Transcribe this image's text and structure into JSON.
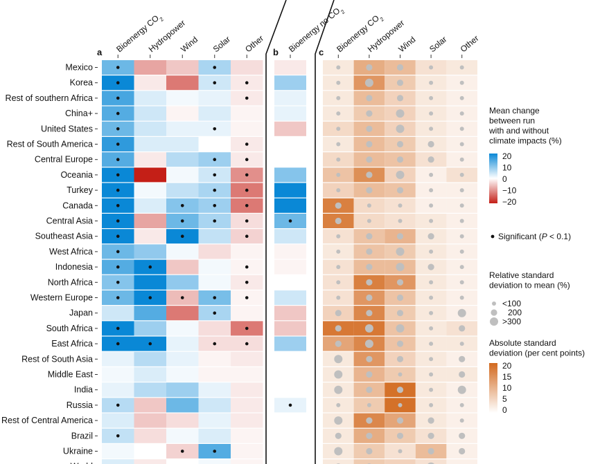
{
  "chart_data": {
    "type": "heatmap",
    "rows": [
      "Mexico",
      "Korea",
      "Rest of southern Africa",
      "China+",
      "United States",
      "Rest of South America",
      "Central Europe",
      "Oceania",
      "Turkey",
      "Canada",
      "Central Asia",
      "Southeast Asia",
      "West Africa",
      "Indonesia",
      "North Africa",
      "Western Europe",
      "Japan",
      "South Africa",
      "East Africa",
      "Rest of South Asia",
      "Middle East",
      "India",
      "Russia",
      "Rest of Central America",
      "Brazil",
      "Ukraine",
      "World"
    ],
    "panels": [
      {
        "label": "a",
        "columns": [
          "Bioenergy CO₂",
          "Hydropower",
          "Wind",
          "Solar",
          "Other"
        ],
        "values": [
          [
            12,
            -8,
            -5,
            7,
            -3
          ],
          [
            22,
            -2,
            -12,
            4,
            -2
          ],
          [
            15,
            3,
            1,
            2,
            -2
          ],
          [
            14,
            4,
            -1,
            3,
            -1
          ],
          [
            12,
            4,
            2,
            2,
            -1
          ],
          [
            17,
            3,
            3,
            0,
            -2
          ],
          [
            14,
            -2,
            6,
            8,
            -2
          ],
          [
            22,
            -24,
            1,
            4,
            -10
          ],
          [
            22,
            1,
            5,
            7,
            -12
          ],
          [
            22,
            3,
            10,
            8,
            -12
          ],
          [
            22,
            -8,
            12,
            7,
            -3
          ],
          [
            22,
            -2,
            22,
            5,
            -4
          ],
          [
            12,
            9,
            1,
            -3,
            -1
          ],
          [
            14,
            20,
            -5,
            1,
            -1
          ],
          [
            10,
            22,
            9,
            1,
            -2
          ],
          [
            12,
            20,
            -6,
            11,
            -1
          ],
          [
            4,
            14,
            -12,
            7,
            -1
          ],
          [
            22,
            8,
            1,
            -3,
            -12
          ],
          [
            22,
            22,
            2,
            -3,
            -3
          ],
          [
            2,
            6,
            2,
            -1,
            -2
          ],
          [
            1,
            3,
            1,
            -1,
            -1
          ],
          [
            2,
            6,
            8,
            2,
            -2
          ],
          [
            6,
            -5,
            12,
            4,
            -2
          ],
          [
            3,
            -5,
            -3,
            2,
            -2
          ],
          [
            5,
            -3,
            1,
            3,
            -1
          ],
          [
            1,
            0,
            -4,
            14,
            -1
          ],
          [
            3,
            -2,
            0,
            1,
            -1
          ]
        ],
        "significant": [
          [
            1,
            0,
            0,
            1,
            0
          ],
          [
            1,
            0,
            0,
            1,
            1
          ],
          [
            1,
            0,
            0,
            0,
            1
          ],
          [
            1,
            0,
            0,
            0,
            0
          ],
          [
            1,
            0,
            0,
            1,
            0
          ],
          [
            1,
            0,
            0,
            0,
            1
          ],
          [
            1,
            0,
            0,
            1,
            1
          ],
          [
            1,
            0,
            0,
            1,
            1
          ],
          [
            1,
            0,
            0,
            1,
            1
          ],
          [
            1,
            0,
            1,
            1,
            1
          ],
          [
            1,
            0,
            1,
            1,
            1
          ],
          [
            1,
            0,
            1,
            0,
            1
          ],
          [
            1,
            0,
            0,
            0,
            0
          ],
          [
            1,
            1,
            0,
            0,
            1
          ],
          [
            1,
            0,
            0,
            0,
            1
          ],
          [
            1,
            1,
            1,
            1,
            1
          ],
          [
            0,
            0,
            0,
            1,
            0
          ],
          [
            1,
            0,
            0,
            0,
            1
          ],
          [
            1,
            1,
            0,
            1,
            1
          ],
          [
            0,
            0,
            0,
            0,
            0
          ],
          [
            0,
            0,
            0,
            0,
            0
          ],
          [
            0,
            0,
            0,
            0,
            0
          ],
          [
            1,
            0,
            0,
            0,
            0
          ],
          [
            0,
            0,
            0,
            0,
            0
          ],
          [
            1,
            0,
            0,
            0,
            0
          ],
          [
            0,
            0,
            1,
            1,
            0
          ],
          [
            1,
            0,
            0,
            0,
            1
          ]
        ]
      },
      {
        "label": "b",
        "columns": [
          "Bioenergy no CO₂"
        ],
        "values": [
          [
            -2
          ],
          [
            8
          ],
          [
            2
          ],
          [
            2
          ],
          [
            -5
          ],
          [
            0
          ],
          [
            0
          ],
          [
            10
          ],
          [
            22
          ],
          [
            22
          ],
          [
            12
          ],
          [
            4
          ],
          [
            -1
          ],
          [
            -1
          ],
          [
            0
          ],
          [
            4
          ],
          [
            -5
          ],
          [
            -5
          ],
          [
            8
          ],
          [
            0
          ],
          [
            0
          ],
          [
            0
          ],
          [
            2
          ],
          [
            0
          ],
          [
            0
          ],
          [
            0
          ],
          [
            0
          ]
        ],
        "significant": [
          [
            0
          ],
          [
            0
          ],
          [
            0
          ],
          [
            0
          ],
          [
            0
          ],
          [
            0
          ],
          [
            0
          ],
          [
            0
          ],
          [
            0
          ],
          [
            0
          ],
          [
            1
          ],
          [
            0
          ],
          [
            0
          ],
          [
            0
          ],
          [
            0
          ],
          [
            0
          ],
          [
            0
          ],
          [
            0
          ],
          [
            0
          ],
          [
            0
          ],
          [
            0
          ],
          [
            0
          ],
          [
            1
          ],
          [
            0
          ],
          [
            0
          ],
          [
            0
          ],
          [
            0
          ]
        ]
      },
      {
        "label": "c",
        "columns": [
          "Bioenergy CO₂",
          "Hydropower",
          "Wind",
          "Solar",
          "Other"
        ],
        "abs_sd": [
          [
            3,
            11,
            9,
            4,
            3
          ],
          [
            3,
            14,
            7,
            3,
            2
          ],
          [
            3,
            9,
            6,
            3,
            2
          ],
          [
            3,
            7,
            6,
            3,
            2
          ],
          [
            5,
            9,
            6,
            3,
            2
          ],
          [
            3,
            9,
            7,
            3,
            2
          ],
          [
            5,
            9,
            8,
            4,
            2
          ],
          [
            8,
            15,
            6,
            2,
            4
          ],
          [
            6,
            9,
            8,
            2,
            2
          ],
          [
            17,
            5,
            4,
            2,
            2
          ],
          [
            17,
            5,
            4,
            3,
            2
          ],
          [
            4,
            8,
            10,
            3,
            2
          ],
          [
            3,
            8,
            7,
            3,
            2
          ],
          [
            4,
            9,
            9,
            3,
            2
          ],
          [
            4,
            17,
            14,
            3,
            2
          ],
          [
            4,
            14,
            8,
            3,
            2
          ],
          [
            6,
            16,
            7,
            3,
            2
          ],
          [
            18,
            18,
            8,
            3,
            4
          ],
          [
            12,
            16,
            8,
            3,
            3
          ],
          [
            3,
            14,
            6,
            3,
            2
          ],
          [
            3,
            10,
            7,
            3,
            3
          ],
          [
            3,
            9,
            19,
            3,
            2
          ],
          [
            3,
            7,
            19,
            3,
            2
          ],
          [
            3,
            16,
            12,
            3,
            2
          ],
          [
            3,
            11,
            7,
            4,
            2
          ],
          [
            3,
            7,
            4,
            9,
            2
          ],
          [
            3,
            7,
            6,
            4,
            2
          ]
        ],
        "rel_sd": [
          [
            1,
            2,
            2,
            1,
            1
          ],
          [
            1,
            3,
            2,
            1,
            1
          ],
          [
            1,
            2,
            2,
            1,
            1
          ],
          [
            1,
            2,
            3,
            1,
            1
          ],
          [
            1,
            2,
            3,
            1,
            1
          ],
          [
            1,
            2,
            2,
            2,
            1
          ],
          [
            1,
            2,
            2,
            2,
            1
          ],
          [
            1,
            2,
            3,
            1,
            1
          ],
          [
            1,
            2,
            2,
            1,
            1
          ],
          [
            2,
            1,
            1,
            1,
            1
          ],
          [
            2,
            1,
            1,
            1,
            1
          ],
          [
            1,
            2,
            2,
            2,
            1
          ],
          [
            1,
            2,
            3,
            1,
            1
          ],
          [
            1,
            2,
            3,
            2,
            1
          ],
          [
            1,
            2,
            2,
            1,
            1
          ],
          [
            1,
            2,
            2,
            1,
            1
          ],
          [
            2,
            2,
            2,
            1,
            3
          ],
          [
            2,
            3,
            3,
            1,
            2
          ],
          [
            2,
            3,
            2,
            1,
            1
          ],
          [
            3,
            2,
            2,
            1,
            2
          ],
          [
            3,
            2,
            1,
            1,
            2
          ],
          [
            3,
            2,
            2,
            1,
            3
          ],
          [
            1,
            1,
            1,
            1,
            1
          ],
          [
            3,
            2,
            2,
            2,
            1
          ],
          [
            2,
            2,
            2,
            2,
            2
          ],
          [
            3,
            2,
            1,
            2,
            2
          ],
          [
            2,
            2,
            1,
            3,
            1
          ]
        ]
      }
    ],
    "legend_mean": {
      "title": [
        "Mean change",
        "between run",
        "with and without",
        "climate impacts (%)"
      ],
      "ticks": [
        "20",
        "10",
        "0",
        "−10",
        "−20"
      ],
      "range": [
        -20,
        20
      ]
    },
    "legend_sig": {
      "label": "Significant (",
      "p": "P",
      "thr": " < 0.1)"
    },
    "legend_rel": {
      "title": [
        "Relative standard",
        "deviation to mean (%)"
      ],
      "items": [
        "<100",
        "200",
        ">300"
      ]
    },
    "legend_abs": {
      "title": [
        "Absolute standard",
        "deviation (per cent points)"
      ],
      "ticks": [
        "20",
        "15",
        "10",
        "5",
        "0"
      ],
      "range": [
        0,
        20
      ]
    },
    "colors": {
      "positive": "#0a88d6",
      "negative": "#c41f17",
      "orange": "#d2691e",
      "dot": "#111111",
      "circle": "#bfbfbf"
    }
  }
}
